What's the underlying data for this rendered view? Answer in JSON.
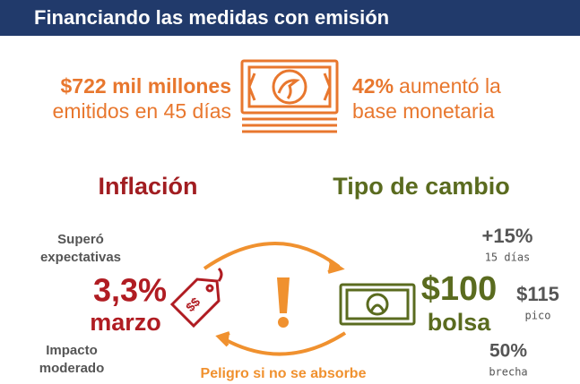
{
  "header": {
    "title": "Financiando las medidas con emisión"
  },
  "emission": {
    "amount": "$722 mil millones",
    "detail": "emitidos en 45 días"
  },
  "base": {
    "percent": "42%",
    "text": "aumentó la",
    "detail": "base monetaria"
  },
  "inflation": {
    "title": "Inflación",
    "note_top": [
      "Superó",
      "expectativas"
    ],
    "value": "3,3%",
    "month": "marzo",
    "note_bottom": [
      "Impacto",
      "moderado"
    ]
  },
  "exchange": {
    "title": "Tipo de cambio",
    "value": "$100",
    "market": "bolsa",
    "change": "+15%",
    "change_period": "15 días",
    "peak": "$115",
    "peak_label": "pico",
    "gap": "50%",
    "gap_label": "brecha"
  },
  "warning": "Peligro si no se absorbe"
}
